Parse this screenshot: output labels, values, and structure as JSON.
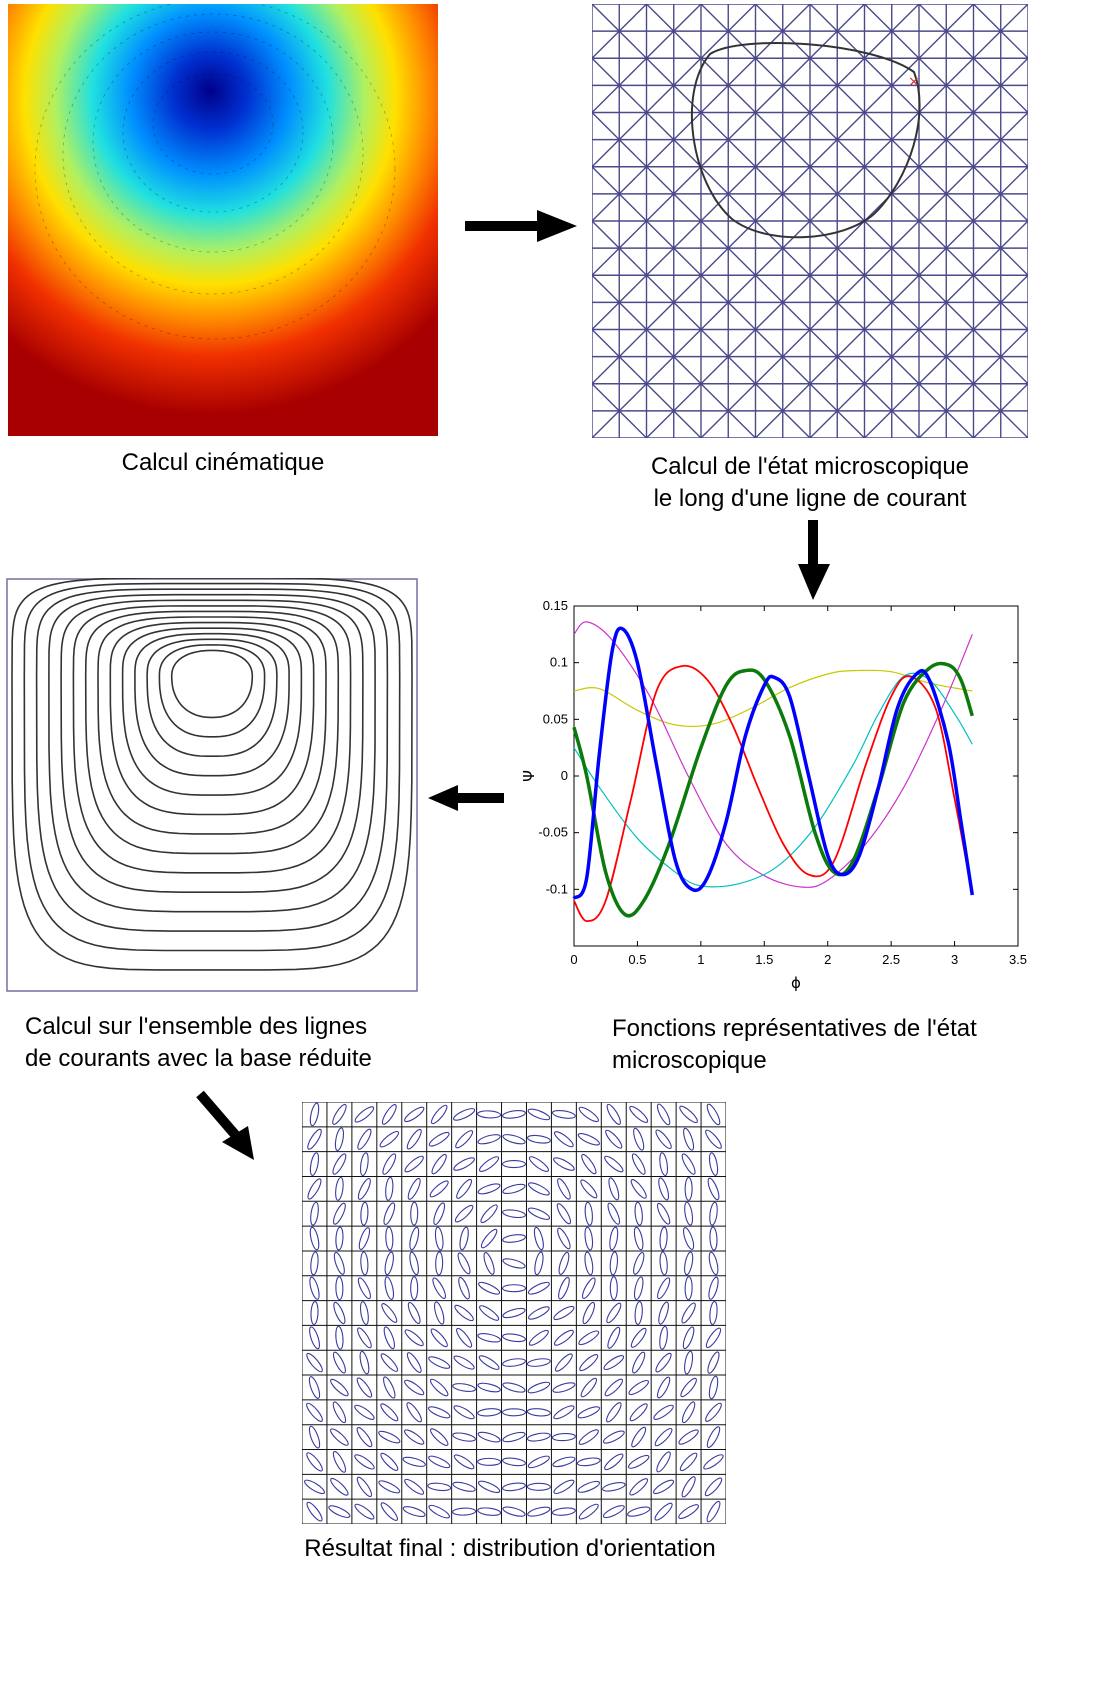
{
  "captions": {
    "kinematic": "Calcul cinématique",
    "micro_line1": "Calcul de l'état microscopique",
    "micro_line2": "le long d'une ligne de courant",
    "streamlines_line1": "Calcul sur l'ensemble des lignes",
    "streamlines_line2": "de courants avec la base réduite",
    "functions_line1": "Fonctions représentatives de l'état",
    "functions_line2": "microscopique",
    "final": "Résultat final : distribution d'orientation"
  },
  "chart_data": {
    "type": "line",
    "xlabel": "ϕ",
    "ylabel": "Ψ",
    "xlim": [
      0,
      3.5
    ],
    "ylim": [
      -0.15,
      0.15
    ],
    "xticks": [
      "0",
      "0.5",
      "1",
      "1.5",
      "2",
      "2.5",
      "3",
      "3.5"
    ],
    "yticks": [
      "-0.1",
      "-0.05",
      "0",
      "0.05",
      "0.1",
      "0.15"
    ],
    "series": [
      {
        "color": "#c8c800",
        "width": 1.2,
        "x": [
          0,
          0.2,
          0.5,
          0.8,
          1.1,
          1.4,
          1.7,
          2.0,
          2.2,
          2.5,
          2.8,
          3.14
        ],
        "y": [
          0.075,
          0.077,
          0.058,
          0.045,
          0.046,
          0.06,
          0.078,
          0.09,
          0.093,
          0.092,
          0.082,
          0.075
        ]
      },
      {
        "color": "#cc33cc",
        "width": 1.2,
        "x": [
          0,
          0.1,
          0.3,
          0.6,
          0.9,
          1.2,
          1.5,
          1.8,
          2.0,
          2.3,
          2.6,
          2.9,
          3.14
        ],
        "y": [
          0.125,
          0.136,
          0.12,
          0.07,
          0.0,
          -0.06,
          -0.088,
          -0.098,
          -0.092,
          -0.06,
          -0.01,
          0.06,
          0.125
        ]
      },
      {
        "color": "#00c0c0",
        "width": 1.2,
        "x": [
          0,
          0.2,
          0.5,
          0.8,
          1.0,
          1.3,
          1.6,
          1.9,
          2.2,
          2.4,
          2.6,
          2.8,
          3.0,
          3.14
        ],
        "y": [
          0.025,
          -0.01,
          -0.055,
          -0.085,
          -0.097,
          -0.095,
          -0.08,
          -0.045,
          0.01,
          0.055,
          0.088,
          0.085,
          0.055,
          0.028
        ]
      },
      {
        "color": "#ff0000",
        "width": 1.8,
        "x": [
          0,
          0.1,
          0.25,
          0.45,
          0.65,
          0.85,
          1.05,
          1.25,
          1.45,
          1.65,
          1.85,
          2.05,
          2.3,
          2.5,
          2.65,
          2.85,
          3.0,
          3.14
        ],
        "y": [
          -0.11,
          -0.128,
          -0.11,
          -0.02,
          0.075,
          0.097,
          0.085,
          0.045,
          -0.01,
          -0.06,
          -0.087,
          -0.075,
          0.01,
          0.07,
          0.088,
          0.06,
          -0.02,
          -0.105
        ]
      },
      {
        "color": "#0a7a0a",
        "width": 3.5,
        "x": [
          0,
          0.1,
          0.25,
          0.4,
          0.55,
          0.75,
          1.0,
          1.2,
          1.35,
          1.5,
          1.7,
          1.9,
          2.05,
          2.2,
          2.4,
          2.6,
          2.8,
          2.95,
          3.05,
          3.14
        ],
        "y": [
          0.043,
          0.0,
          -0.085,
          -0.122,
          -0.11,
          -0.06,
          0.025,
          0.08,
          0.093,
          0.085,
          0.035,
          -0.05,
          -0.085,
          -0.075,
          -0.01,
          0.065,
          0.095,
          0.098,
          0.085,
          0.053
        ]
      },
      {
        "color": "#0000ff",
        "width": 3.5,
        "x": [
          0,
          0.1,
          0.2,
          0.3,
          0.38,
          0.5,
          0.65,
          0.8,
          0.93,
          1.05,
          1.2,
          1.35,
          1.5,
          1.58,
          1.7,
          1.85,
          2.0,
          2.12,
          2.25,
          2.4,
          2.55,
          2.7,
          2.8,
          2.95,
          3.05,
          3.14
        ],
        "y": [
          -0.108,
          -0.09,
          0.02,
          0.11,
          0.13,
          0.1,
          0.01,
          -0.075,
          -0.1,
          -0.09,
          -0.04,
          0.035,
          0.08,
          0.087,
          0.07,
          0.0,
          -0.07,
          -0.087,
          -0.07,
          -0.01,
          0.06,
          0.09,
          0.085,
          0.03,
          -0.04,
          -0.105
        ]
      }
    ]
  }
}
